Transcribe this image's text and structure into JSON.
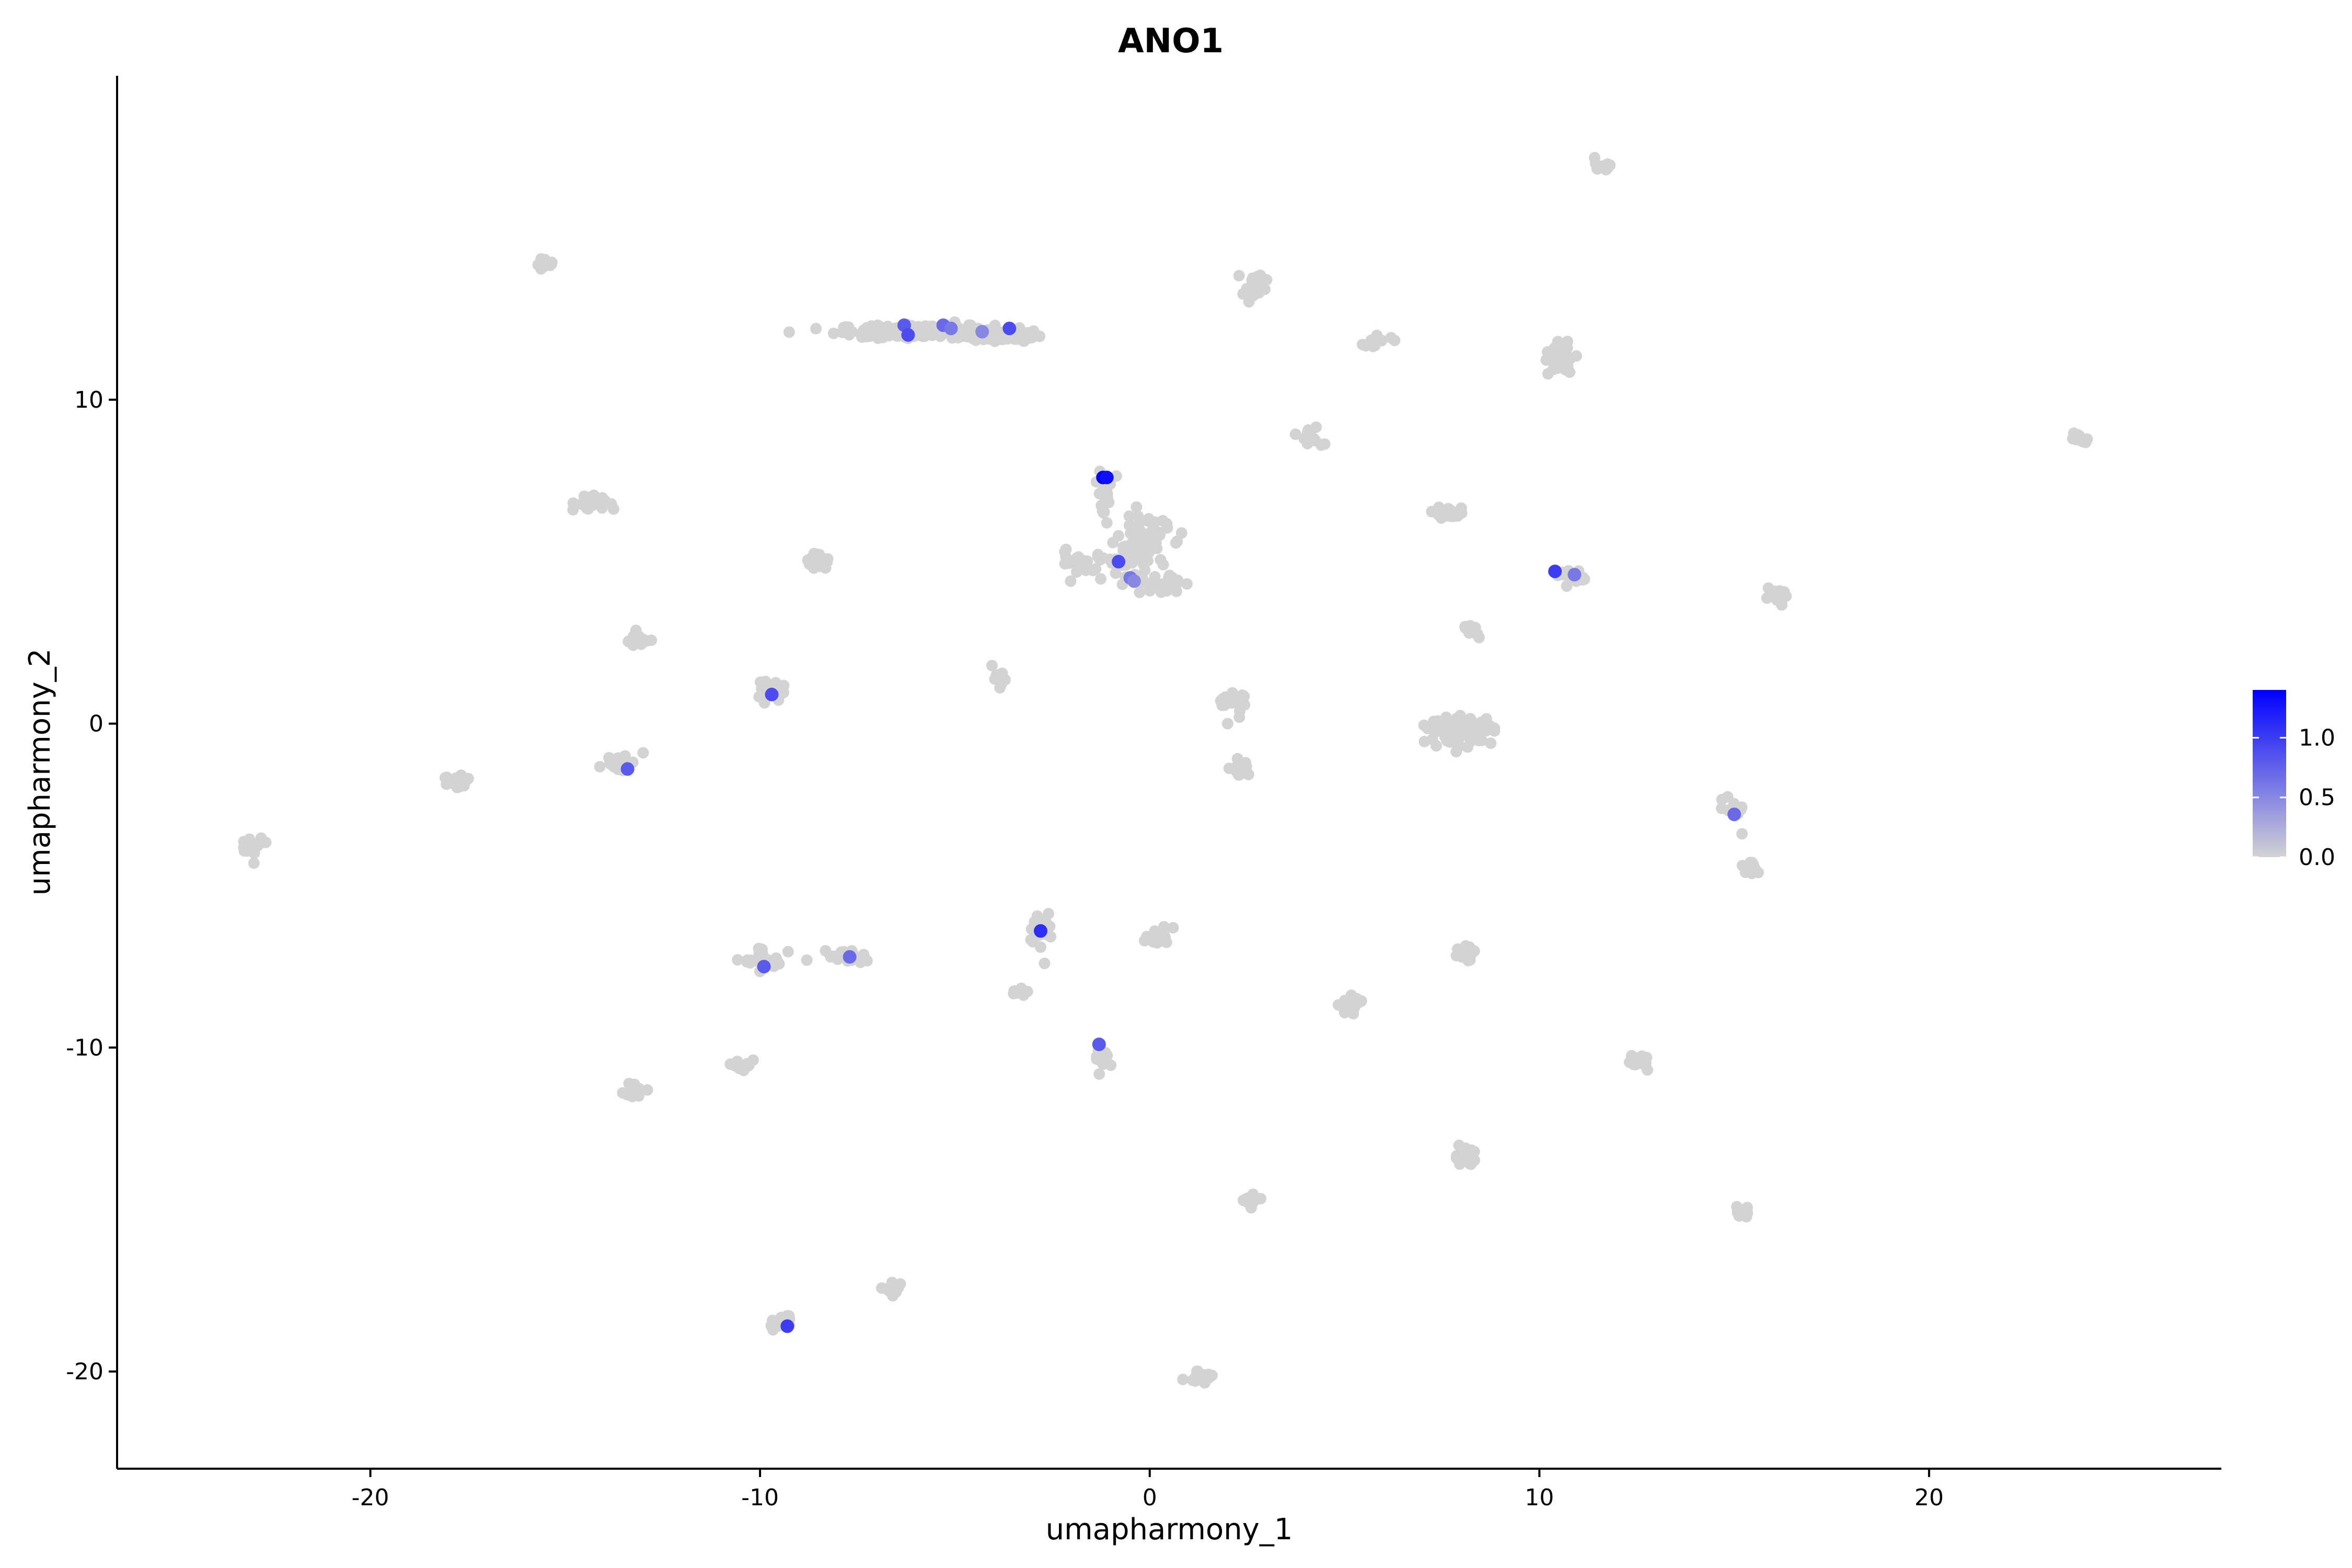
{
  "chart_data": {
    "type": "scatter",
    "title": "ANO1",
    "xlabel": "umapharmony_1",
    "ylabel": "umapharmony_2",
    "xlim": [
      -26.5,
      27.5
    ],
    "ylim": [
      -23,
      20
    ],
    "x_ticks": [
      -20,
      -10,
      0,
      10,
      20
    ],
    "y_ticks": [
      -20,
      -10,
      0,
      10
    ],
    "x_tick_labels": [
      "-20",
      "-10",
      "0",
      "10",
      "20"
    ],
    "y_tick_labels": [
      "-20",
      "-10",
      "0",
      "10"
    ],
    "grid": false,
    "legend": {
      "type": "colorbar",
      "placement": "right",
      "tick_values": [
        0.0,
        0.5,
        1.0
      ],
      "tick_labels": [
        "0.0",
        "0.5",
        "1.0"
      ],
      "range": [
        0,
        1.4
      ],
      "color_low": "#d3d3d3",
      "color_high": "#0000ff"
    },
    "point_color_default": "#d3d3d3",
    "clusters": [
      {
        "x": -6.0,
        "y": 12.1,
        "sx": 1.0,
        "sy": 0.1,
        "n": 180
      },
      {
        "x": -4.0,
        "y": 12.0,
        "sx": 0.5,
        "sy": 0.1,
        "n": 60
      },
      {
        "x": -15.5,
        "y": 14.2,
        "sx": 0.1,
        "sy": 0.1,
        "n": 15
      },
      {
        "x": 2.7,
        "y": 13.5,
        "sx": 0.15,
        "sy": 0.2,
        "n": 25
      },
      {
        "x": 5.8,
        "y": 11.8,
        "sx": 0.2,
        "sy": 0.1,
        "n": 12
      },
      {
        "x": 10.5,
        "y": 11.3,
        "sx": 0.2,
        "sy": 0.25,
        "n": 35
      },
      {
        "x": 11.6,
        "y": 17.2,
        "sx": 0.15,
        "sy": 0.1,
        "n": 10
      },
      {
        "x": 4.1,
        "y": 8.8,
        "sx": 0.15,
        "sy": 0.15,
        "n": 15
      },
      {
        "x": 23.9,
        "y": 8.8,
        "sx": 0.15,
        "sy": 0.1,
        "n": 15
      },
      {
        "x": -14.3,
        "y": 6.8,
        "sx": 0.2,
        "sy": 0.15,
        "n": 25
      },
      {
        "x": -1.2,
        "y": 7.3,
        "sx": 0.15,
        "sy": 0.3,
        "n": 20
      },
      {
        "x": -0.2,
        "y": 5.5,
        "sx": 0.35,
        "sy": 0.4,
        "n": 90
      },
      {
        "x": 0.3,
        "y": 4.3,
        "sx": 0.25,
        "sy": 0.2,
        "n": 25
      },
      {
        "x": -1.5,
        "y": 5.0,
        "sx": 0.45,
        "sy": 0.2,
        "n": 30
      },
      {
        "x": -8.5,
        "y": 5.0,
        "sx": 0.15,
        "sy": 0.12,
        "n": 15
      },
      {
        "x": 7.7,
        "y": 6.5,
        "sx": 0.2,
        "sy": 0.12,
        "n": 25
      },
      {
        "x": 10.9,
        "y": 4.5,
        "sx": 0.2,
        "sy": 0.1,
        "n": 15
      },
      {
        "x": 16.1,
        "y": 3.9,
        "sx": 0.15,
        "sy": 0.1,
        "n": 15
      },
      {
        "x": -13.1,
        "y": 2.6,
        "sx": 0.15,
        "sy": 0.1,
        "n": 20
      },
      {
        "x": 8.2,
        "y": 2.8,
        "sx": 0.12,
        "sy": 0.12,
        "n": 12
      },
      {
        "x": -3.9,
        "y": 1.4,
        "sx": 0.15,
        "sy": 0.15,
        "n": 10
      },
      {
        "x": -9.8,
        "y": 1.0,
        "sx": 0.2,
        "sy": 0.15,
        "n": 20
      },
      {
        "x": 2.1,
        "y": 0.7,
        "sx": 0.2,
        "sy": 0.12,
        "n": 20
      },
      {
        "x": 8.0,
        "y": -0.2,
        "sx": 0.4,
        "sy": 0.2,
        "n": 120
      },
      {
        "x": -17.7,
        "y": -1.8,
        "sx": 0.2,
        "sy": 0.15,
        "n": 25
      },
      {
        "x": -13.6,
        "y": -1.2,
        "sx": 0.2,
        "sy": 0.12,
        "n": 25
      },
      {
        "x": 2.3,
        "y": -1.3,
        "sx": 0.12,
        "sy": 0.15,
        "n": 15
      },
      {
        "x": 15.0,
        "y": -2.6,
        "sx": 0.15,
        "sy": 0.12,
        "n": 15
      },
      {
        "x": 15.4,
        "y": -4.4,
        "sx": 0.12,
        "sy": 0.12,
        "n": 12
      },
      {
        "x": -23.0,
        "y": -3.8,
        "sx": 0.15,
        "sy": 0.15,
        "n": 20
      },
      {
        "x": -2.8,
        "y": -6.3,
        "sx": 0.15,
        "sy": 0.25,
        "n": 25
      },
      {
        "x": 0.3,
        "y": -6.6,
        "sx": 0.2,
        "sy": 0.12,
        "n": 15
      },
      {
        "x": -9.9,
        "y": -7.3,
        "sx": 0.25,
        "sy": 0.15,
        "n": 30
      },
      {
        "x": -7.8,
        "y": -7.2,
        "sx": 0.25,
        "sy": 0.12,
        "n": 20
      },
      {
        "x": 8.1,
        "y": -7.1,
        "sx": 0.15,
        "sy": 0.15,
        "n": 20
      },
      {
        "x": -3.3,
        "y": -8.3,
        "sx": 0.12,
        "sy": 0.1,
        "n": 12
      },
      {
        "x": 5.2,
        "y": -8.7,
        "sx": 0.15,
        "sy": 0.12,
        "n": 20
      },
      {
        "x": -1.2,
        "y": -10.4,
        "sx": 0.12,
        "sy": 0.15,
        "n": 15
      },
      {
        "x": -10.4,
        "y": -10.6,
        "sx": 0.12,
        "sy": 0.1,
        "n": 12
      },
      {
        "x": 12.5,
        "y": -10.4,
        "sx": 0.15,
        "sy": 0.12,
        "n": 15
      },
      {
        "x": -13.3,
        "y": -11.3,
        "sx": 0.15,
        "sy": 0.12,
        "n": 20
      },
      {
        "x": 8.1,
        "y": -13.3,
        "sx": 0.15,
        "sy": 0.15,
        "n": 20
      },
      {
        "x": 2.6,
        "y": -14.7,
        "sx": 0.12,
        "sy": 0.1,
        "n": 12
      },
      {
        "x": 15.2,
        "y": -15.1,
        "sx": 0.12,
        "sy": 0.1,
        "n": 12
      },
      {
        "x": -6.6,
        "y": -17.5,
        "sx": 0.15,
        "sy": 0.1,
        "n": 10
      },
      {
        "x": -9.5,
        "y": -18.5,
        "sx": 0.15,
        "sy": 0.12,
        "n": 15
      },
      {
        "x": 1.3,
        "y": -20.2,
        "sx": 0.2,
        "sy": 0.1,
        "n": 15
      }
    ],
    "scattered_points": [
      {
        "x": -1.1,
        "y": 6.2
      },
      {
        "x": -0.8,
        "y": 5.8
      },
      {
        "x": -0.7,
        "y": 4.3
      },
      {
        "x": -0.3,
        "y": 6.4
      },
      {
        "x": 2.3,
        "y": 0.2
      },
      {
        "x": 2.0,
        "y": 0.0
      },
      {
        "x": 15.2,
        "y": -3.4
      },
      {
        "x": -13.0,
        "y": -0.9
      },
      {
        "x": -2.8,
        "y": -6.9
      },
      {
        "x": -2.7,
        "y": -7.4
      },
      {
        "x": -8.8,
        "y": -7.3
      },
      {
        "x": 0.6,
        "y": -6.3
      },
      {
        "x": 4.4,
        "y": 8.6
      },
      {
        "x": 10.6,
        "y": 4.6
      }
    ],
    "expressing_points": [
      {
        "x": -1.2,
        "y": 7.6,
        "value": 1.4
      },
      {
        "x": -1.1,
        "y": 7.6,
        "value": 1.3
      },
      {
        "x": -6.3,
        "y": 12.3,
        "value": 0.8
      },
      {
        "x": -6.2,
        "y": 12.0,
        "value": 0.9
      },
      {
        "x": -5.3,
        "y": 12.3,
        "value": 0.7
      },
      {
        "x": -5.1,
        "y": 12.2,
        "value": 0.6
      },
      {
        "x": -4.3,
        "y": 12.1,
        "value": 0.5
      },
      {
        "x": -3.6,
        "y": 12.2,
        "value": 0.9
      },
      {
        "x": -0.5,
        "y": 4.5,
        "value": 0.6
      },
      {
        "x": -0.4,
        "y": 4.4,
        "value": 0.5
      },
      {
        "x": -0.8,
        "y": 5.0,
        "value": 0.9
      },
      {
        "x": 10.4,
        "y": 4.7,
        "value": 1.0
      },
      {
        "x": 10.9,
        "y": 4.6,
        "value": 0.6
      },
      {
        "x": -9.7,
        "y": 0.9,
        "value": 0.9
      },
      {
        "x": -13.4,
        "y": -1.4,
        "value": 0.8
      },
      {
        "x": 15.0,
        "y": -2.8,
        "value": 0.7
      },
      {
        "x": -2.8,
        "y": -6.4,
        "value": 1.1
      },
      {
        "x": -9.9,
        "y": -7.5,
        "value": 0.8
      },
      {
        "x": -7.7,
        "y": -7.2,
        "value": 0.7
      },
      {
        "x": -1.3,
        "y": -9.9,
        "value": 0.8
      },
      {
        "x": -9.3,
        "y": -18.6,
        "value": 1.0
      }
    ]
  }
}
